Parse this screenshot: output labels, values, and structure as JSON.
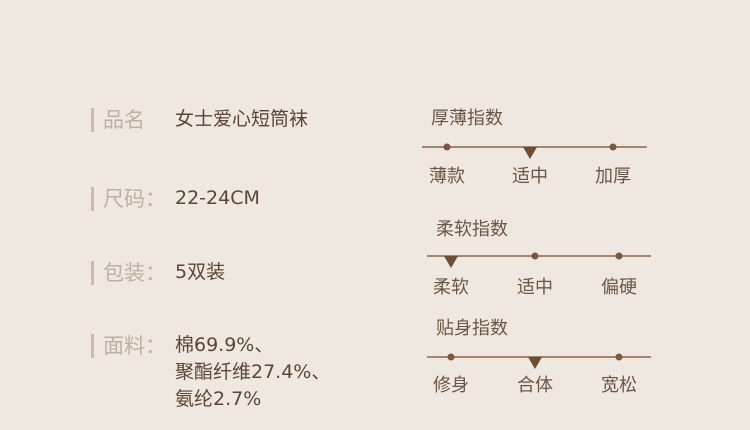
{
  "specs": [
    {
      "label": "品名",
      "value": "女士爱心短筒袜"
    },
    {
      "label": "尺码：",
      "value": "22-24CM"
    },
    {
      "label": "包装：",
      "value": "5双装"
    },
    {
      "label": "面料：",
      "value": "棉69.9%、\n聚酯纤维27.4%、\n氨纶2.7%"
    }
  ],
  "scales": [
    {
      "title": "厚薄指数",
      "options": [
        "薄款",
        "适中",
        "加厚"
      ],
      "selected_index": 1
    },
    {
      "title": "柔软指数",
      "options": [
        "柔软",
        "适中",
        "偏硬"
      ],
      "selected_index": 0
    },
    {
      "title": "贴身指数",
      "options": [
        "修身",
        "合体",
        "宽松"
      ],
      "selected_index": 1
    }
  ],
  "colors": {
    "background": "#efe8e0",
    "value_text": "#5b4535",
    "label_text": "#bdb1a4",
    "accent": "#6e4d35"
  }
}
